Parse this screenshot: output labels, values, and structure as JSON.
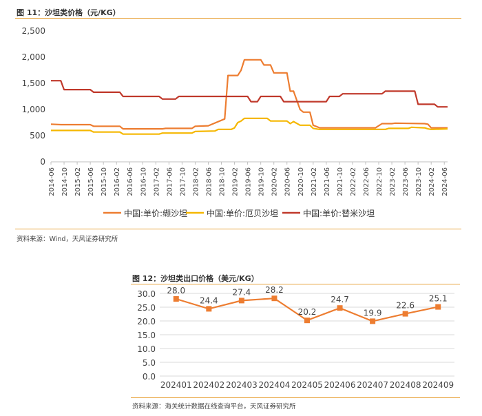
{
  "figure1": {
    "title": "图 11：沙坦类价格（元/KG）",
    "source": "资料来源：Wind，天风证券研究所",
    "chart_data": {
      "type": "line",
      "ylim": [
        0,
        2500
      ],
      "yticks": [
        0,
        500,
        1000,
        1500,
        2000,
        2500
      ],
      "ytick_labels": [
        "0",
        "500",
        "1,000",
        "1,500",
        "2,000",
        "2,500"
      ],
      "xtick_labels": [
        "2014-06",
        "2014-10",
        "2015-02",
        "2015-06",
        "2015-10",
        "2016-02",
        "2016-06",
        "2016-10",
        "2017-02",
        "2017-06",
        "2017-10",
        "2018-02",
        "2018-06",
        "2018-10",
        "2019-02",
        "2019-06",
        "2019-10",
        "2020-02",
        "2020-06",
        "2020-10",
        "2021-02",
        "2021-06",
        "2021-10",
        "2022-02",
        "2022-06",
        "2022-10",
        "2023-02",
        "2023-06",
        "2023-10",
        "2024-02",
        "2024-06"
      ],
      "legend_position": "bottom",
      "grid": false,
      "series": [
        {
          "name": "中国:单价:缬沙坦",
          "color": "#ed7d31",
          "points": [
            [
              "2014-06",
              720
            ],
            [
              "2014-09",
              710
            ],
            [
              "2015-06",
              710
            ],
            [
              "2015-07",
              680
            ],
            [
              "2016-03",
              680
            ],
            [
              "2016-04",
              630
            ],
            [
              "2017-04",
              630
            ],
            [
              "2017-05",
              640
            ],
            [
              "2018-01",
              640
            ],
            [
              "2018-02",
              680
            ],
            [
              "2018-06",
              690
            ],
            [
              "2018-11",
              820
            ],
            [
              "2018-12",
              1650
            ],
            [
              "2019-03",
              1650
            ],
            [
              "2019-04",
              1750
            ],
            [
              "2019-05",
              1950
            ],
            [
              "2019-10",
              1950
            ],
            [
              "2019-11",
              1850
            ],
            [
              "2020-01",
              1850
            ],
            [
              "2020-02",
              1700
            ],
            [
              "2020-06",
              1700
            ],
            [
              "2020-07",
              1350
            ],
            [
              "2020-08",
              1350
            ],
            [
              "2020-10",
              1000
            ],
            [
              "2020-11",
              950
            ],
            [
              "2021-01",
              950
            ],
            [
              "2021-02",
              700
            ],
            [
              "2021-04",
              650
            ],
            [
              "2022-09",
              650
            ],
            [
              "2022-11",
              730
            ],
            [
              "2023-02",
              730
            ],
            [
              "2023-03",
              740
            ],
            [
              "2023-12",
              730
            ],
            [
              "2024-01",
              720
            ],
            [
              "2024-02",
              650
            ],
            [
              "2024-07",
              650
            ]
          ]
        },
        {
          "name": "中国:单价:厄贝沙坦",
          "color": "#f5b700",
          "points": [
            [
              "2014-06",
              600
            ],
            [
              "2015-06",
              600
            ],
            [
              "2015-07",
              570
            ],
            [
              "2016-03",
              570
            ],
            [
              "2016-04",
              530
            ],
            [
              "2017-03",
              530
            ],
            [
              "2017-04",
              550
            ],
            [
              "2018-01",
              550
            ],
            [
              "2018-02",
              580
            ],
            [
              "2018-08",
              590
            ],
            [
              "2018-09",
              620
            ],
            [
              "2019-01",
              620
            ],
            [
              "2019-02",
              650
            ],
            [
              "2019-03",
              750
            ],
            [
              "2019-04",
              780
            ],
            [
              "2019-05",
              830
            ],
            [
              "2019-12",
              830
            ],
            [
              "2020-01",
              780
            ],
            [
              "2020-06",
              780
            ],
            [
              "2020-07",
              730
            ],
            [
              "2020-08",
              770
            ],
            [
              "2020-10",
              700
            ],
            [
              "2021-01",
              700
            ],
            [
              "2021-02",
              640
            ],
            [
              "2021-04",
              620
            ],
            [
              "2022-12",
              620
            ],
            [
              "2023-01",
              640
            ],
            [
              "2023-07",
              640
            ],
            [
              "2023-08",
              660
            ],
            [
              "2023-12",
              650
            ],
            [
              "2024-01",
              630
            ],
            [
              "2024-02",
              620
            ],
            [
              "2024-07",
              630
            ]
          ]
        },
        {
          "name": "中国:单价:替米沙坦",
          "color": "#c0392b",
          "points": [
            [
              "2014-06",
              1550
            ],
            [
              "2014-09",
              1550
            ],
            [
              "2014-10",
              1380
            ],
            [
              "2015-06",
              1380
            ],
            [
              "2015-07",
              1330
            ],
            [
              "2016-03",
              1330
            ],
            [
              "2016-04",
              1250
            ],
            [
              "2017-03",
              1250
            ],
            [
              "2017-04",
              1200
            ],
            [
              "2017-08",
              1200
            ],
            [
              "2017-09",
              1250
            ],
            [
              "2019-06",
              1250
            ],
            [
              "2019-07",
              1150
            ],
            [
              "2019-09",
              1150
            ],
            [
              "2019-10",
              1250
            ],
            [
              "2020-04",
              1250
            ],
            [
              "2020-05",
              1150
            ],
            [
              "2021-06",
              1150
            ],
            [
              "2021-07",
              1250
            ],
            [
              "2021-10",
              1250
            ],
            [
              "2021-11",
              1300
            ],
            [
              "2022-11",
              1300
            ],
            [
              "2022-12",
              1350
            ],
            [
              "2023-09",
              1350
            ],
            [
              "2023-10",
              1100
            ],
            [
              "2024-03",
              1100
            ],
            [
              "2024-04",
              1050
            ],
            [
              "2024-07",
              1050
            ]
          ]
        }
      ]
    }
  },
  "figure2": {
    "title": "图 12：沙坦类出口价格（美元/KG）",
    "source": "资料来源：海关统计数据在线查询平台，天风证券研究所",
    "chart_data": {
      "type": "line",
      "categories": [
        "202401",
        "202402",
        "202403",
        "202404",
        "202405",
        "202406",
        "202407",
        "202408",
        "202409"
      ],
      "values": [
        28.0,
        24.4,
        27.4,
        28.2,
        20.2,
        24.7,
        19.9,
        22.6,
        25.1
      ],
      "data_labels": [
        "28.0",
        "24.4",
        "27.4",
        "28.2",
        "20.2",
        "24.7",
        "19.9",
        "22.6",
        "25.1"
      ],
      "ylim": [
        0,
        30
      ],
      "yticks": [
        0,
        5,
        10,
        15,
        20,
        25,
        30
      ],
      "ytick_labels": [
        "0.0",
        "5.0",
        "10.0",
        "15.0",
        "20.0",
        "25.0",
        "30.0"
      ],
      "grid": true,
      "color": "#ed7d31"
    }
  }
}
